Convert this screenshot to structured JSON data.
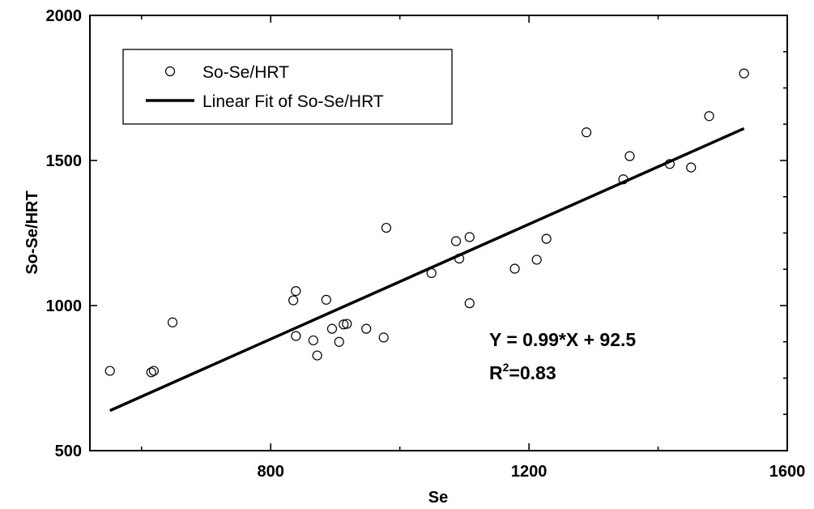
{
  "chart_data": {
    "type": "scatter",
    "xlabel": "Se",
    "ylabel": "So-Se/HRT",
    "xlim": [
      520,
      1600
    ],
    "ylim": [
      500,
      2000
    ],
    "x_ticks": [
      800,
      1200,
      1600
    ],
    "y_ticks": [
      500,
      1000,
      1500,
      2000
    ],
    "x_tick_labels": [
      "800",
      "1200",
      "1600"
    ],
    "y_tick_labels": [
      "500",
      "1000",
      "1500",
      "2000"
    ],
    "grid": false,
    "legend_position": "top-left",
    "series": [
      {
        "name": "So-Se/HRT",
        "kind": "scatter",
        "marker": "open-circle",
        "points": [
          {
            "x": 551,
            "y": 775
          },
          {
            "x": 615,
            "y": 770
          },
          {
            "x": 619,
            "y": 775
          },
          {
            "x": 648,
            "y": 942
          },
          {
            "x": 835,
            "y": 1018
          },
          {
            "x": 839,
            "y": 1050
          },
          {
            "x": 839,
            "y": 895
          },
          {
            "x": 866,
            "y": 880
          },
          {
            "x": 872,
            "y": 828
          },
          {
            "x": 886,
            "y": 1020
          },
          {
            "x": 895,
            "y": 920
          },
          {
            "x": 906,
            "y": 875
          },
          {
            "x": 913,
            "y": 935
          },
          {
            "x": 918,
            "y": 937
          },
          {
            "x": 948,
            "y": 920
          },
          {
            "x": 975,
            "y": 890
          },
          {
            "x": 979,
            "y": 1268
          },
          {
            "x": 1049,
            "y": 1112
          },
          {
            "x": 1087,
            "y": 1222
          },
          {
            "x": 1092,
            "y": 1162
          },
          {
            "x": 1108,
            "y": 1236
          },
          {
            "x": 1108,
            "y": 1008
          },
          {
            "x": 1178,
            "y": 1127
          },
          {
            "x": 1212,
            "y": 1158
          },
          {
            "x": 1227,
            "y": 1230
          },
          {
            "x": 1289,
            "y": 1597
          },
          {
            "x": 1346,
            "y": 1435
          },
          {
            "x": 1356,
            "y": 1515
          },
          {
            "x": 1418,
            "y": 1488
          },
          {
            "x": 1451,
            "y": 1476
          },
          {
            "x": 1479,
            "y": 1653
          },
          {
            "x": 1533,
            "y": 1800
          }
        ]
      },
      {
        "name": "Linear Fit of So-Se/HRT",
        "kind": "line",
        "slope": 0.99,
        "intercept": 92.5,
        "x_range": [
          551,
          1533
        ]
      }
    ],
    "annotations": {
      "equation": "Y = 0.99*X + 92.5",
      "r_squared_prefix": "R",
      "r_squared_sup": "2",
      "r_squared_value": "=0.83"
    },
    "colors": {
      "line": "#000000",
      "marker_stroke": "#000000",
      "background": "#ffffff"
    }
  }
}
